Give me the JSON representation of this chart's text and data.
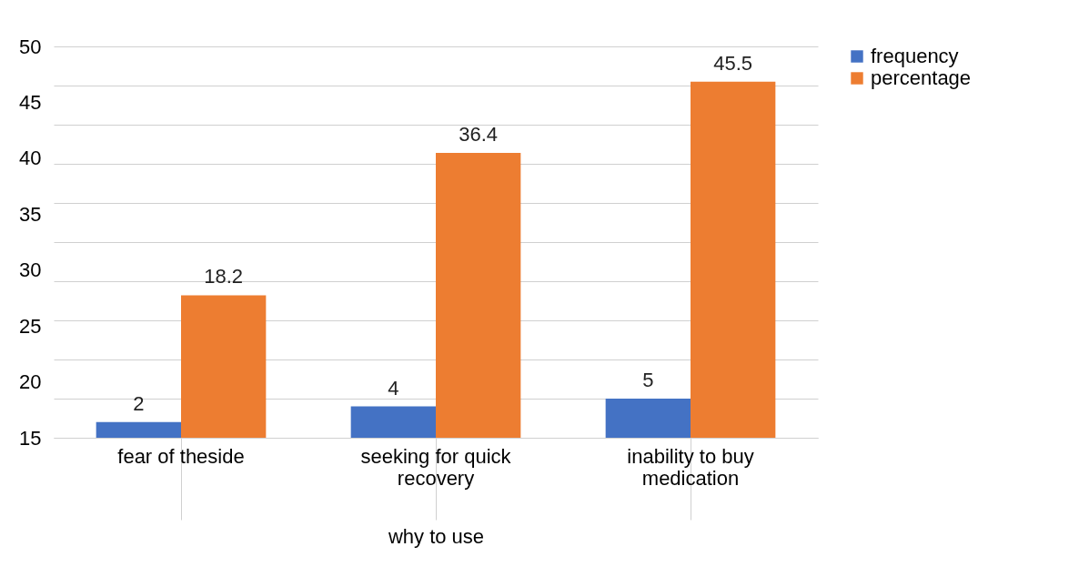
{
  "chart_data": {
    "type": "bar",
    "xlabel": "why to use",
    "categories": [
      "fear of theside",
      "seeking for quick recovery",
      "inability to buy medication"
    ],
    "series": [
      {
        "name": "frequency",
        "color": "#4472c4",
        "values": [
          2,
          4,
          5
        ],
        "axis": "y2"
      },
      {
        "name": "percentage",
        "color": "#ed7d31",
        "values": [
          18.2,
          36.4,
          45.5
        ],
        "axis": "y2"
      }
    ],
    "ylim": [
      15,
      50
    ],
    "yticks": [
      15,
      20,
      25,
      30,
      35,
      40,
      45,
      50
    ],
    "y2lim": [
      0,
      50
    ],
    "y2ticks": [
      {
        "value": 0,
        "label": null
      },
      {
        "value": 5,
        "label": null
      },
      {
        "value": 10,
        "label": null
      },
      {
        "value": 15,
        "label": null
      },
      {
        "value": 20,
        "label": null
      },
      {
        "value": 25,
        "label": null
      },
      {
        "value": 30,
        "label": null
      },
      {
        "value": 35,
        "label": null
      },
      {
        "value": 40,
        "label": null
      },
      {
        "value": 45,
        "label": null
      },
      {
        "value": 50,
        "label": null
      }
    ],
    "grid": "y2",
    "legend": "right",
    "data_labels": true
  }
}
